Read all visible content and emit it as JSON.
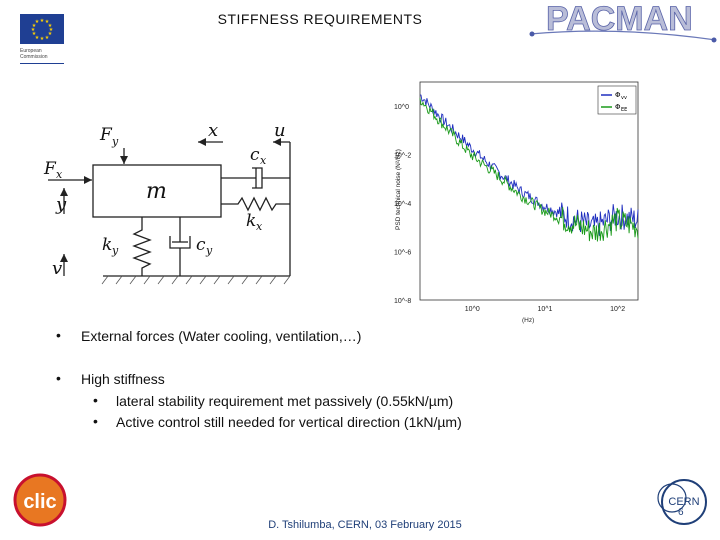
{
  "slide": {
    "title": "STIFFNESS  REQUIREMENTS",
    "eu_logo_text": [
      "European",
      "Commission"
    ],
    "pacman_logo_text": "PACMAN",
    "clic_logo_text": "clic",
    "cern_logo_text": "CERN",
    "page_number": "6",
    "footer": "D. Tshilumba, CERN,  03 February 2015"
  },
  "diagram": {
    "labels": {
      "fy": "F",
      "fy_sub": "y",
      "x": "x",
      "u": "u",
      "fx": "F",
      "fx_sub": "x",
      "cx": "c",
      "cx_sub": "x",
      "y": "y",
      "m": "m",
      "kx": "k",
      "kx_sub": "x",
      "ky": "k",
      "ky_sub": "y",
      "cy": "c",
      "cy_sub": "y",
      "v": "v"
    }
  },
  "chart_data": {
    "type": "line",
    "title": "",
    "xlabel": "(Hz)",
    "ylabel": "PSD technical noise (N²/Hz)",
    "x_scale": "log",
    "y_scale": "log",
    "xlim": [
      0.2,
      200
    ],
    "ylim": [
      1e-08,
      10
    ],
    "x_ticks": [
      "10^0",
      "10^1",
      "10^2"
    ],
    "y_ticks": [
      "10^0",
      "10^-2",
      "10^-4",
      "10^-6",
      "10^-8"
    ],
    "legend_position": "top-right",
    "series": [
      {
        "name": "Φ",
        "name_sub": "vv",
        "color": "#1f2fbf",
        "x": [
          0.2,
          0.4,
          1,
          2,
          5,
          10,
          20,
          50,
          100,
          200
        ],
        "y": [
          3,
          0.3,
          0.02,
          0.003,
          0.0003,
          8e-05,
          3e-05,
          1e-05,
          3e-05,
          2e-05
        ]
      },
      {
        "name": "Φ",
        "name_sub": "EE",
        "color": "#1a9a1a",
        "x": [
          0.2,
          0.4,
          1,
          2,
          5,
          10,
          20,
          50,
          100,
          200
        ],
        "y": [
          2,
          0.2,
          0.01,
          0.002,
          0.0002,
          5e-05,
          2e-05,
          6e-06,
          2e-05,
          1e-05
        ]
      }
    ]
  },
  "bullets": {
    "b1": "External forces (Water cooling, ventilation,…)",
    "b2": "High stiffness",
    "sub1": "lateral stability requirement met passively (0.55kN/µm)",
    "sub2": "Active control still needed for vertical direction (1kN/µm)",
    "dot": "•"
  }
}
